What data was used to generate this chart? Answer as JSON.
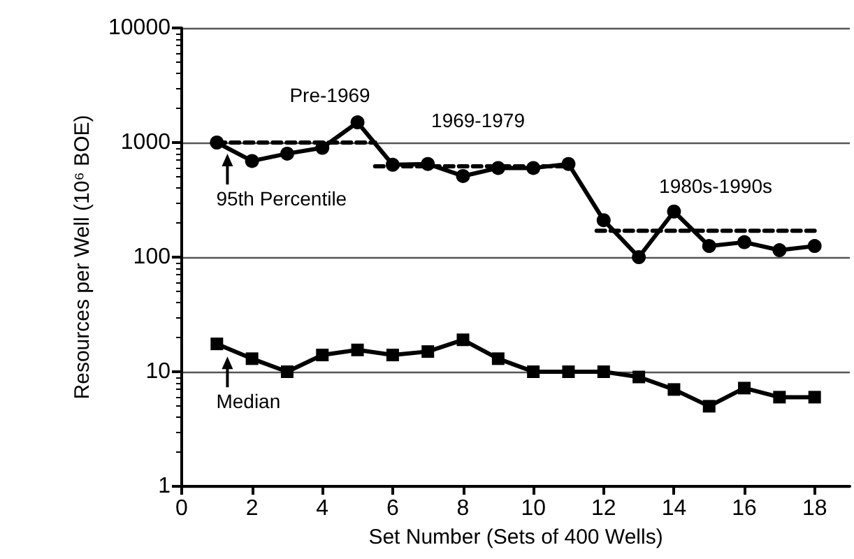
{
  "chart_data": {
    "type": "line",
    "xlabel": "Set Number (Sets of 400 Wells)",
    "ylabel": "Resources per Well (10⁶ BOE)",
    "x": [
      1,
      2,
      3,
      4,
      5,
      6,
      7,
      8,
      9,
      10,
      11,
      12,
      13,
      14,
      15,
      16,
      17,
      18
    ],
    "series": [
      {
        "color": "#000000",
        "marker": "circle",
        "values": [
          1000,
          690,
          800,
          900,
          1500,
          640,
          650,
          510,
          600,
          600,
          650,
          210,
          100,
          250,
          125,
          135,
          115,
          125
        ]
      },
      {
        "color": "#000000",
        "marker": "square",
        "values": [
          17.5,
          13,
          10,
          14,
          15.5,
          14,
          15,
          19,
          13,
          10,
          10,
          10,
          9,
          7,
          5,
          7.2,
          6,
          6
        ]
      },
      {
        "color": "#000000",
        "marker": "none",
        "line_style": "dashed",
        "x": [
          1,
          5.5
        ],
        "values": [
          1000,
          1000
        ]
      },
      {
        "color": "#000000",
        "marker": "none",
        "line_style": "dashed",
        "x": [
          5.5,
          11
        ],
        "values": [
          620,
          620
        ]
      },
      {
        "color": "#000000",
        "marker": "none",
        "line_style": "dashed",
        "x": [
          11.8,
          18
        ],
        "values": [
          170,
          170
        ]
      }
    ],
    "log": "y",
    "xlim": [
      0,
      19
    ],
    "xticks": [
      0,
      2,
      4,
      6,
      8,
      10,
      12,
      14,
      16,
      18
    ],
    "ylim": [
      1,
      10000
    ],
    "yticks": [
      1,
      10,
      100,
      1000,
      10000
    ],
    "grid": "y",
    "annotations": [
      "Pre-1969",
      "1969-1979",
      "1980s-1990s",
      {
        "text": "95th Percentile",
        "x": 1.3,
        "y": 1000
      },
      {
        "text": "Median",
        "x": 1.3,
        "y": 17
      }
    ]
  }
}
